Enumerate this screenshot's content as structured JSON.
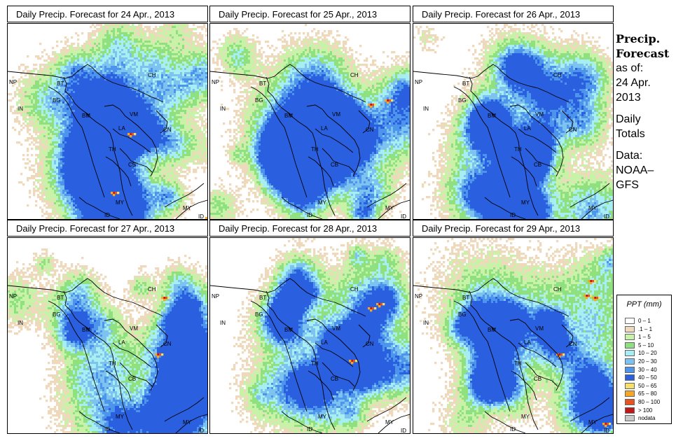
{
  "panels": [
    {
      "title": "Daily Precip. Forecast for  24 Apr., 2013",
      "seed": 11,
      "hot": [
        [
          50,
          80
        ],
        [
          95,
          92
        ],
        [
          58,
          52
        ]
      ]
    },
    {
      "title": "Daily Precip. Forecast for  25 Apr., 2013",
      "seed": 23,
      "hot": [
        [
          84,
          36
        ],
        [
          76,
          38
        ]
      ]
    },
    {
      "title": "Daily Precip. Forecast for  26 Apr., 2013",
      "seed": 37,
      "hot": []
    },
    {
      "title": "Daily Precip. Forecast for  27 Apr., 2013",
      "seed": 41,
      "hot": [
        [
          74,
          28
        ],
        [
          71,
          55
        ]
      ]
    },
    {
      "title": "Daily Precip. Forecast for  28 Apr., 2013",
      "seed": 53,
      "hot": [
        [
          80,
          31
        ],
        [
          76,
          33
        ],
        [
          67,
          58
        ]
      ]
    },
    {
      "title": "Daily Precip. Forecast for  29 Apr., 2013",
      "seed": 67,
      "hot": [
        [
          82,
          27
        ],
        [
          86,
          28
        ],
        [
          84,
          20
        ],
        [
          69,
          55
        ],
        [
          91,
          88
        ]
      ]
    }
  ],
  "region_labels": [
    "NP",
    "BT",
    "BG",
    "IN",
    "BM",
    "CH",
    "VM",
    "CN",
    "LA",
    "TH",
    "CB",
    "MY",
    "ID",
    "MY",
    "ID"
  ],
  "sidebar": {
    "title_line1": "Precip.",
    "title_line2": "Forecast",
    "asof": "as of:",
    "date1": "24 Apr.",
    "date2": "2013",
    "daily1": "Daily",
    "daily2": "Totals",
    "data1": "Data:",
    "data2": "NOAA–",
    "data3": "GFS"
  },
  "legend": {
    "title": "PPT (mm)",
    "items": [
      {
        "label": "0 – 1",
        "color": "#ffffff"
      },
      {
        "label": ".1 – 1",
        "color": "#efd9bd"
      },
      {
        "label": "1 – 5",
        "color": "#c9f2a9"
      },
      {
        "label": "5 – 10",
        "color": "#8fe07e"
      },
      {
        "label": "10 – 20",
        "color": "#a6eef2"
      },
      {
        "label": "20 – 30",
        "color": "#7ec3f0"
      },
      {
        "label": "30 – 40",
        "color": "#4d95ec"
      },
      {
        "label": "40 – 50",
        "color": "#2a5fe0"
      },
      {
        "label": "50 – 65",
        "color": "#f7e06a"
      },
      {
        "label": "65 – 80",
        "color": "#f5a623"
      },
      {
        "label": "80 – 100",
        "color": "#e8541e"
      },
      {
        "label": "> 100",
        "color": "#c01818"
      },
      {
        "label": "nodata",
        "color": "#c8c8c8"
      }
    ]
  }
}
